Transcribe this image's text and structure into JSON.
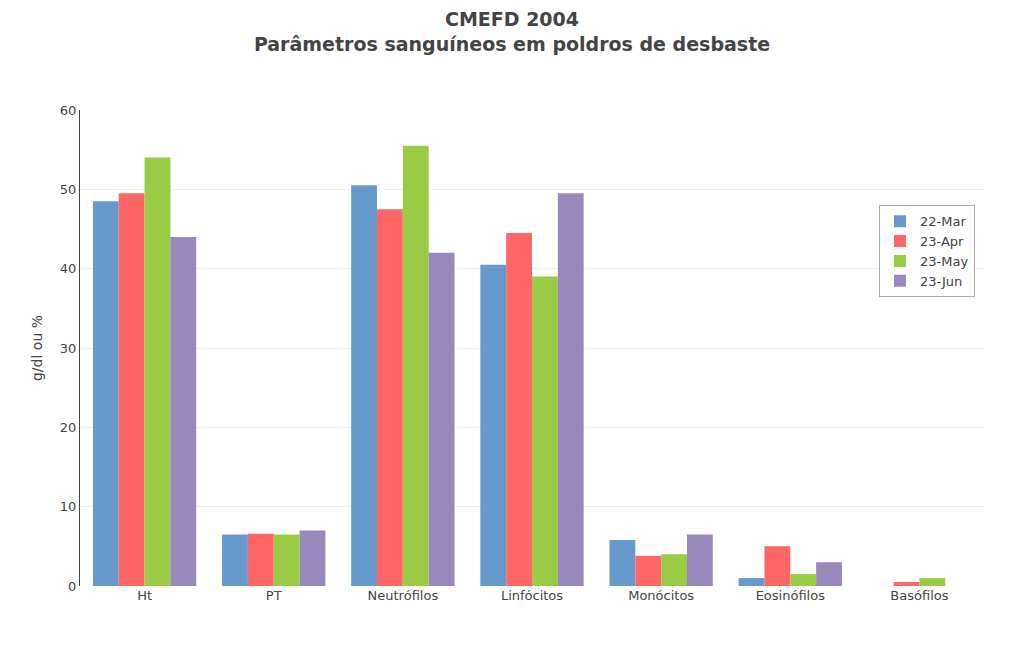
{
  "chart_data": {
    "type": "bar",
    "title": "CMEFD 2004",
    "subtitle": "Parâmetros sanguíneos em poldros de desbaste",
    "categories": [
      "Ht",
      "PT",
      "Neutrófilos",
      "Linfócitos",
      "Monócitos",
      "Eosinófilos",
      "Basófilos"
    ],
    "series": [
      {
        "name": "22-Mar",
        "color": "#6699CC",
        "values": [
          48.5,
          6.5,
          50.5,
          40.5,
          5.8,
          1.0,
          0.0
        ]
      },
      {
        "name": "23-Apr",
        "color": "#FF6666",
        "values": [
          49.5,
          6.6,
          47.5,
          44.5,
          3.8,
          5.0,
          0.5
        ]
      },
      {
        "name": "23-May",
        "color": "#99CC44",
        "values": [
          54.0,
          6.5,
          55.5,
          39.0,
          4.0,
          1.5,
          1.0
        ]
      },
      {
        "name": "23-Jun",
        "color": "#9988BB",
        "values": [
          44.0,
          7.0,
          42.0,
          49.5,
          6.5,
          3.0,
          0.0
        ]
      }
    ],
    "ylabel": "g/dl ou %",
    "ylim": [
      0,
      60
    ],
    "yticks": [
      0,
      10,
      20,
      30,
      40,
      50,
      60
    ],
    "grid": true,
    "legend": "upper right"
  }
}
